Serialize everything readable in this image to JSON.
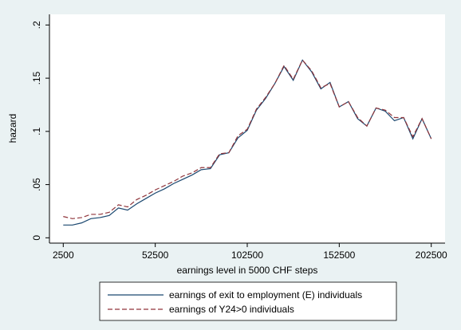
{
  "chart_data": {
    "type": "line",
    "y_label": "hazard",
    "x_label": "earnings level in 5000 CHF steps",
    "x": [
      2500,
      7500,
      12500,
      17500,
      22500,
      27500,
      32500,
      37500,
      42500,
      47500,
      52500,
      57500,
      62500,
      67500,
      72500,
      77500,
      82500,
      87500,
      92500,
      97500,
      102500,
      107500,
      112500,
      117500,
      122500,
      127500,
      132500,
      137500,
      142500,
      147500,
      152500,
      157500,
      162500,
      167500,
      172500,
      177500,
      182500,
      187500,
      192500,
      197500,
      202500
    ],
    "series": [
      {
        "name": "earnings of exit to employment (E) individuals",
        "color": "#1a476f",
        "dash": false,
        "values": [
          0.012,
          0.012,
          0.014,
          0.018,
          0.019,
          0.021,
          0.028,
          0.026,
          0.032,
          0.037,
          0.042,
          0.046,
          0.051,
          0.055,
          0.059,
          0.064,
          0.065,
          0.078,
          0.08,
          0.094,
          0.101,
          0.12,
          0.131,
          0.145,
          0.161,
          0.148,
          0.167,
          0.156,
          0.14,
          0.146,
          0.123,
          0.128,
          0.112,
          0.105,
          0.122,
          0.119,
          0.11,
          0.113,
          0.093,
          0.112,
          0.093
        ]
      },
      {
        "name": "earnings of Y24>0 individuals",
        "color": "#90353b",
        "dash": true,
        "values": [
          0.02,
          0.018,
          0.019,
          0.022,
          0.022,
          0.024,
          0.031,
          0.029,
          0.036,
          0.04,
          0.045,
          0.049,
          0.053,
          0.058,
          0.061,
          0.066,
          0.066,
          0.079,
          0.08,
          0.096,
          0.102,
          0.121,
          0.132,
          0.145,
          0.162,
          0.149,
          0.167,
          0.157,
          0.141,
          0.145,
          0.123,
          0.128,
          0.113,
          0.105,
          0.122,
          0.12,
          0.113,
          0.113,
          0.095,
          0.112,
          0.093
        ]
      }
    ],
    "xlim": [
      -5000,
      210000
    ],
    "xticks": [
      2500,
      52500,
      102500,
      152500,
      202500
    ],
    "ylim": [
      -0.005,
      0.21
    ],
    "yticks": [
      0,
      {
        "value": 0.05,
        "label": ".05"
      },
      {
        "value": 0.1,
        "label": ".1"
      },
      {
        "value": 0.15,
        "label": ".15"
      },
      {
        "value": 0.2,
        "label": ".2"
      }
    ]
  }
}
